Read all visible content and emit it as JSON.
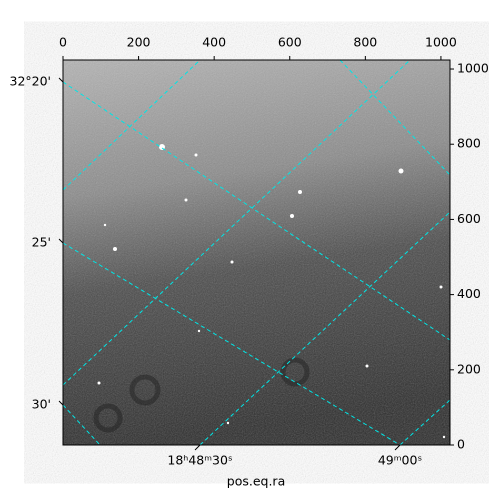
{
  "chart_data": {
    "type": "image",
    "xlabel": "pos.eq.ra",
    "xlim": [
      0,
      1024
    ],
    "ylim": [
      0,
      1024
    ],
    "xticks": [
      0,
      200,
      400,
      600,
      800,
      1000
    ],
    "yticks": [
      0,
      200,
      400,
      600,
      800,
      1000
    ],
    "ra_tick_labels": [
      "18ʰ48ᵐ30ˢ",
      "49ᵐ00ˢ"
    ],
    "dec_tick_labels": [
      "32°20'",
      "25'",
      "30'"
    ],
    "colormap": "gray"
  }
}
